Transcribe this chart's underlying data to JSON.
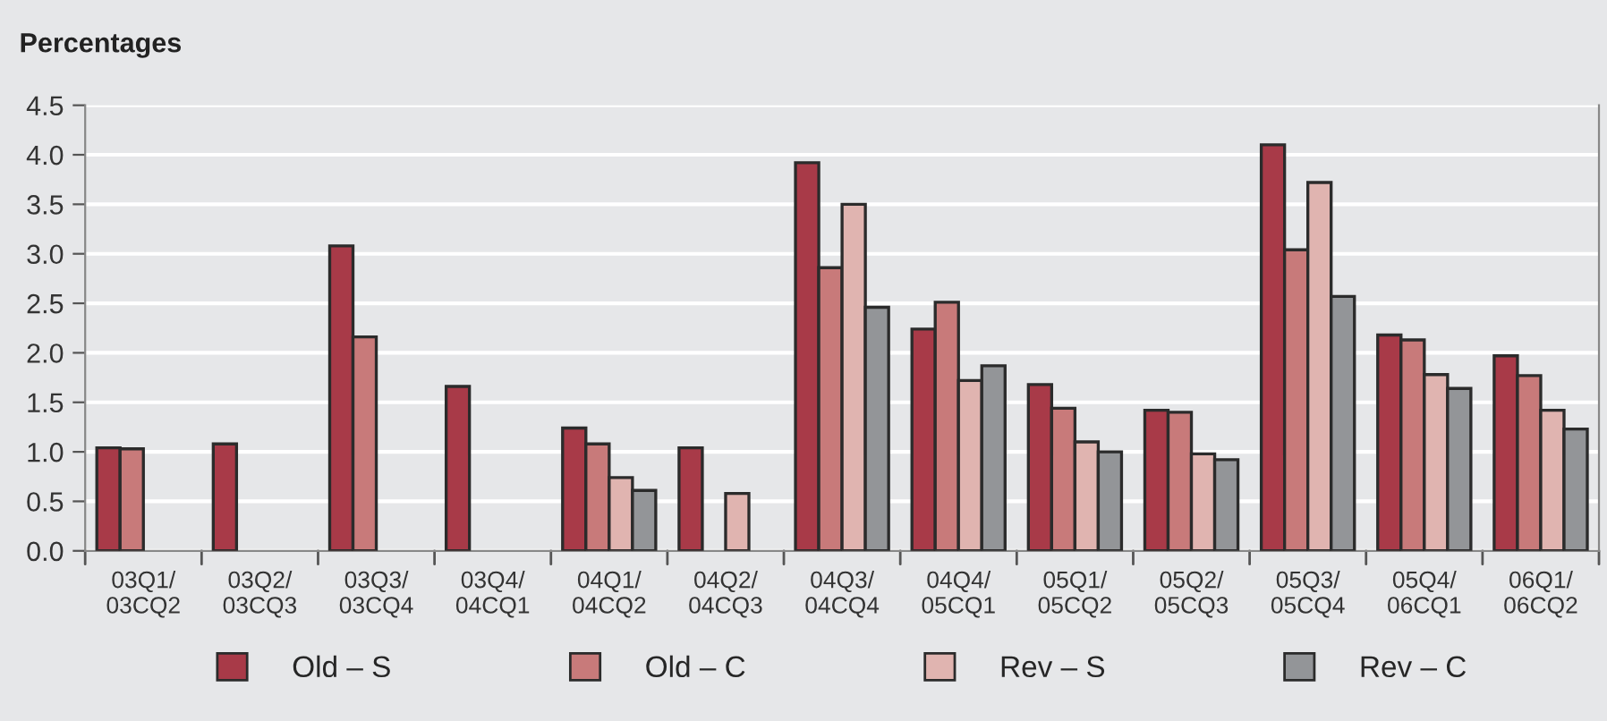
{
  "chart_data": {
    "type": "bar",
    "title": "Percentages",
    "categories": [
      "03Q1/\n03CQ2",
      "03Q2/\n03CQ3",
      "03Q3/\n03CQ4",
      "03Q4/\n04CQ1",
      "04Q1/\n04CQ2",
      "04Q2/\n04CQ3",
      "04Q3/\n04CQ4",
      "04Q4/\n05CQ1",
      "05Q1/\n05CQ2",
      "05Q2/\n05CQ3",
      "05Q3/\n05CQ4",
      "05Q4/\n06CQ1",
      "06Q1/\n06CQ2"
    ],
    "series": [
      {
        "name": "Old – S",
        "color": "#a83a48",
        "values": [
          1.04,
          1.08,
          3.08,
          1.66,
          1.24,
          1.04,
          3.92,
          2.24,
          1.68,
          1.42,
          4.1,
          2.18,
          1.97
        ]
      },
      {
        "name": "Old – C",
        "color": "#c87a7a",
        "values": [
          1.03,
          null,
          2.16,
          null,
          1.08,
          null,
          2.86,
          2.51,
          1.44,
          1.4,
          3.04,
          2.13,
          1.77
        ]
      },
      {
        "name": "Rev – S",
        "color": "#e0b4b0",
        "values": [
          null,
          null,
          null,
          null,
          0.74,
          0.58,
          3.5,
          1.72,
          1.1,
          0.98,
          3.72,
          1.78,
          1.42
        ]
      },
      {
        "name": "Rev – C",
        "color": "#939598",
        "values": [
          null,
          null,
          null,
          null,
          0.61,
          null,
          2.46,
          1.87,
          1.0,
          0.92,
          2.57,
          1.64,
          1.23
        ]
      }
    ],
    "ylim": [
      0,
      4.5
    ],
    "yticks": [
      {
        "value": 0,
        "label": "0.0"
      },
      {
        "value": 0.5,
        "label": "0.5"
      },
      {
        "value": 1,
        "label": "1.0"
      },
      {
        "value": 1.5,
        "label": "1.5"
      },
      {
        "value": 2,
        "label": "2.0"
      },
      {
        "value": 2.5,
        "label": "2.5"
      },
      {
        "value": 3,
        "label": "3.0"
      },
      {
        "value": 3.5,
        "label": "3.5"
      },
      {
        "value": 4,
        "label": "4.0"
      },
      {
        "value": 4.5,
        "label": "4.5"
      }
    ],
    "grid": "y",
    "legend": "bottom"
  }
}
